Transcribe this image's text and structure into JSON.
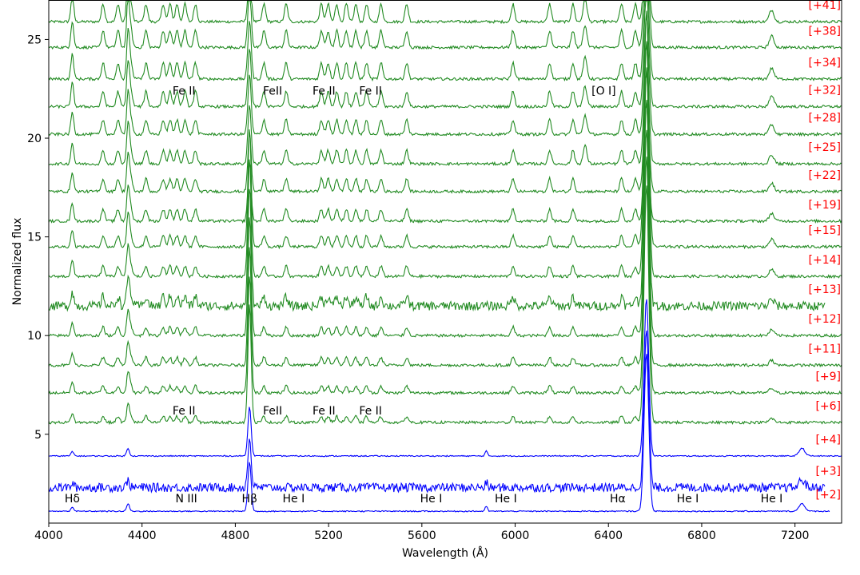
{
  "chart_data": {
    "type": "line",
    "title": "",
    "xlabel": "Wavelength (Å)",
    "ylabel": "Normalized flux",
    "xlim": [
      4000,
      7400
    ],
    "ylim": [
      0.5,
      27
    ],
    "x_ticks": [
      4000,
      4400,
      4800,
      5200,
      5600,
      6000,
      6400,
      6800,
      7200
    ],
    "y_ticks": [
      5,
      10,
      15,
      20,
      25
    ],
    "grid": false,
    "colors": {
      "early": "#0000ff",
      "late": "#228b22",
      "epoch_label": "#ff0000"
    },
    "series": [
      {
        "name": "[+41]",
        "offset": 25.9,
        "color": "#228b22"
      },
      {
        "name": "[+38]",
        "offset": 24.6,
        "color": "#228b22"
      },
      {
        "name": "[+34]",
        "offset": 23.0,
        "color": "#228b22"
      },
      {
        "name": "[+32]",
        "offset": 21.6,
        "color": "#228b22"
      },
      {
        "name": "[+28]",
        "offset": 20.2,
        "color": "#228b22"
      },
      {
        "name": "[+25]",
        "offset": 18.7,
        "color": "#228b22"
      },
      {
        "name": "[+22]",
        "offset": 17.3,
        "color": "#228b22"
      },
      {
        "name": "[+19]",
        "offset": 15.8,
        "color": "#228b22"
      },
      {
        "name": "[+15]",
        "offset": 14.5,
        "color": "#228b22"
      },
      {
        "name": "[+14]",
        "offset": 13.0,
        "color": "#228b22"
      },
      {
        "name": "[+13]",
        "offset": 11.5,
        "color": "#228b22"
      },
      {
        "name": "[+12]",
        "offset": 10.0,
        "color": "#228b22"
      },
      {
        "name": "[+11]",
        "offset": 8.5,
        "color": "#228b22"
      },
      {
        "name": "[+9]",
        "offset": 7.1,
        "color": "#228b22"
      },
      {
        "name": "[+6]",
        "offset": 5.6,
        "color": "#228b22"
      },
      {
        "name": "[+4]",
        "offset": 3.9,
        "color": "#0000ff"
      },
      {
        "name": "[+3]",
        "offset": 2.3,
        "color": "#0000ff"
      },
      {
        "name": "[+2]",
        "offset": 1.1,
        "color": "#0000ff"
      }
    ],
    "line_labels": {
      "upper": [
        {
          "text": "Fe II",
          "x": 4580,
          "y": 22.2
        },
        {
          "text": "FeII",
          "x": 4960,
          "y": 22.2
        },
        {
          "text": "Fe II",
          "x": 5180,
          "y": 22.2
        },
        {
          "text": "Fe II",
          "x": 5380,
          "y": 22.2
        },
        {
          "text": "[O I]",
          "x": 6380,
          "y": 22.2
        }
      ],
      "middle": [
        {
          "text": "Fe II",
          "x": 4580,
          "y": 6.0
        },
        {
          "text": "FeII",
          "x": 4960,
          "y": 6.0
        },
        {
          "text": "Fe II",
          "x": 5180,
          "y": 6.0
        },
        {
          "text": "Fe II",
          "x": 5380,
          "y": 6.0
        }
      ],
      "lower": [
        {
          "text": "Hδ",
          "x": 4101,
          "y": 1.55
        },
        {
          "text": "N III",
          "x": 4590,
          "y": 1.55
        },
        {
          "text": "Hβ",
          "x": 4861,
          "y": 1.55
        },
        {
          "text": "He I",
          "x": 5050,
          "y": 1.55
        },
        {
          "text": "He I",
          "x": 5640,
          "y": 1.55
        },
        {
          "text": "He I",
          "x": 5960,
          "y": 1.55
        },
        {
          "text": "Hα",
          "x": 6440,
          "y": 1.55
        },
        {
          "text": "He I",
          "x": 6740,
          "y": 1.55
        },
        {
          "text": "He I",
          "x": 7100,
          "y": 1.55
        }
      ]
    }
  }
}
